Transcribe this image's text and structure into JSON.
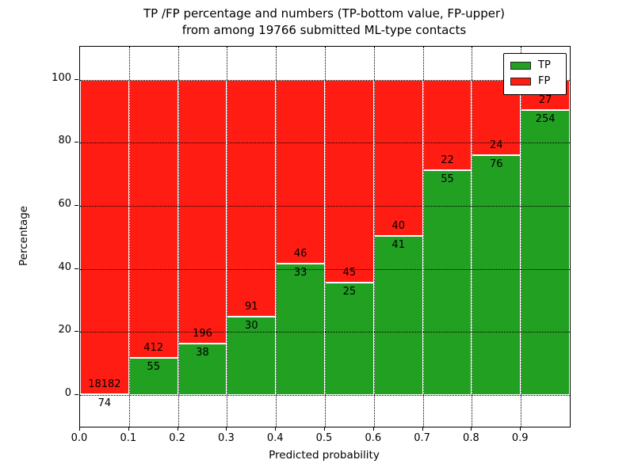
{
  "figure": {
    "title_line1": "TP /FP percentage and numbers (TP-bottom value, FP-upper)",
    "title_line2": "from among 19766 submitted ML-type contacts"
  },
  "chart_data": {
    "type": "bar",
    "stacked": true,
    "title": "TP /FP percentage and numbers (TP-bottom value, FP-upper) from among 19766 submitted ML-type contacts",
    "xlabel": "Predicted probability",
    "ylabel": "Percentage",
    "bin_edges": [
      0.0,
      0.1,
      0.2,
      0.3,
      0.4,
      0.5,
      0.6,
      0.7,
      0.8,
      0.9,
      1.0
    ],
    "categories": [
      "0.0-0.1",
      "0.1-0.2",
      "0.2-0.3",
      "0.3-0.4",
      "0.4-0.5",
      "0.5-0.6",
      "0.6-0.7",
      "0.7-0.8",
      "0.8-0.9",
      "0.9-1.0"
    ],
    "series": [
      {
        "name": "TP",
        "color": "#22a022",
        "counts": [
          74,
          55,
          38,
          30,
          33,
          25,
          41,
          55,
          76,
          254
        ],
        "percent": [
          0.41,
          11.78,
          16.24,
          24.79,
          41.77,
          35.71,
          50.62,
          71.43,
          76.0,
          90.39
        ]
      },
      {
        "name": "FP",
        "color": "#ff1d13",
        "counts": [
          18182,
          412,
          196,
          91,
          46,
          45,
          40,
          22,
          24,
          27
        ],
        "percent": [
          99.59,
          88.22,
          83.76,
          75.21,
          58.23,
          64.29,
          49.38,
          28.57,
          24.0,
          9.61
        ]
      }
    ],
    "xticks": [
      "0.0",
      "0.1",
      "0.2",
      "0.3",
      "0.4",
      "0.5",
      "0.6",
      "0.7",
      "0.8",
      "0.9"
    ],
    "yticks": [
      0,
      20,
      40,
      60,
      80,
      100
    ],
    "xlim": [
      0.0,
      1.0
    ],
    "ylim": [
      -10,
      110.5
    ],
    "grid": "dotted",
    "legend": {
      "position": "upper right",
      "entries": [
        "TP",
        "FP"
      ]
    }
  }
}
